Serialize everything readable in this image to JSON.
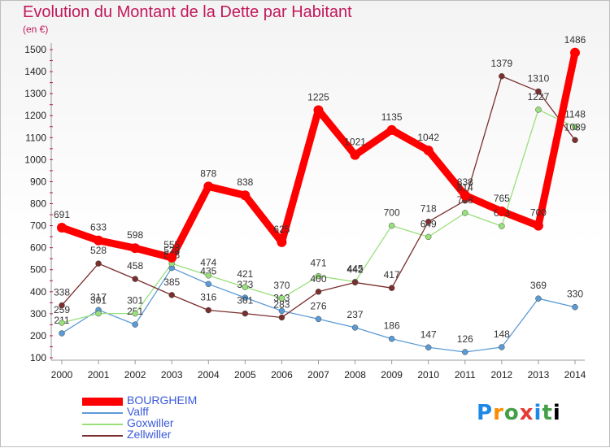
{
  "title": "Evolution du Montant de la Dette par Habitant",
  "unit": "(en €)",
  "logo": "Proxiti",
  "chart_data": {
    "type": "line",
    "title": "Evolution du Montant de la Dette par Habitant",
    "subtitle": "(en €)",
    "x": [
      2000,
      2001,
      2002,
      2003,
      2004,
      2005,
      2006,
      2007,
      2008,
      2009,
      2010,
      2011,
      2012,
      2013,
      2014
    ],
    "ylim": [
      100,
      1500
    ],
    "yticks": [
      100,
      200,
      300,
      400,
      500,
      600,
      700,
      800,
      900,
      1000,
      1100,
      1200,
      1300,
      1400,
      1500
    ],
    "grid": false,
    "legend_position": "bottom-left",
    "series": [
      {
        "name": "BOURGHEIM",
        "color": "#ff0000",
        "width": 9,
        "values": [
          691,
          633,
          598,
          555,
          878,
          838,
          625,
          1225,
          1021,
          1135,
          1042,
          838,
          765,
          700,
          1486
        ]
      },
      {
        "name": "Valff",
        "color": "#5b9bd5",
        "width": 1.3,
        "values": [
          211,
          317,
          251,
          508,
          435,
          373,
          313,
          276,
          237,
          186,
          147,
          126,
          148,
          369,
          330
        ]
      },
      {
        "name": "Goxwiller",
        "color": "#99e07a",
        "width": 1.3,
        "values": [
          259,
          301,
          301,
          528,
          474,
          421,
          370,
          471,
          445,
          700,
          649,
          758,
          698,
          1227,
          1148
        ]
      },
      {
        "name": "Zellwiller",
        "color": "#7a2e2e",
        "width": 1.3,
        "values": [
          338,
          528,
          458,
          385,
          316,
          301,
          283,
          400,
          442,
          417,
          718,
          814,
          1379,
          1310,
          1089
        ]
      }
    ]
  }
}
